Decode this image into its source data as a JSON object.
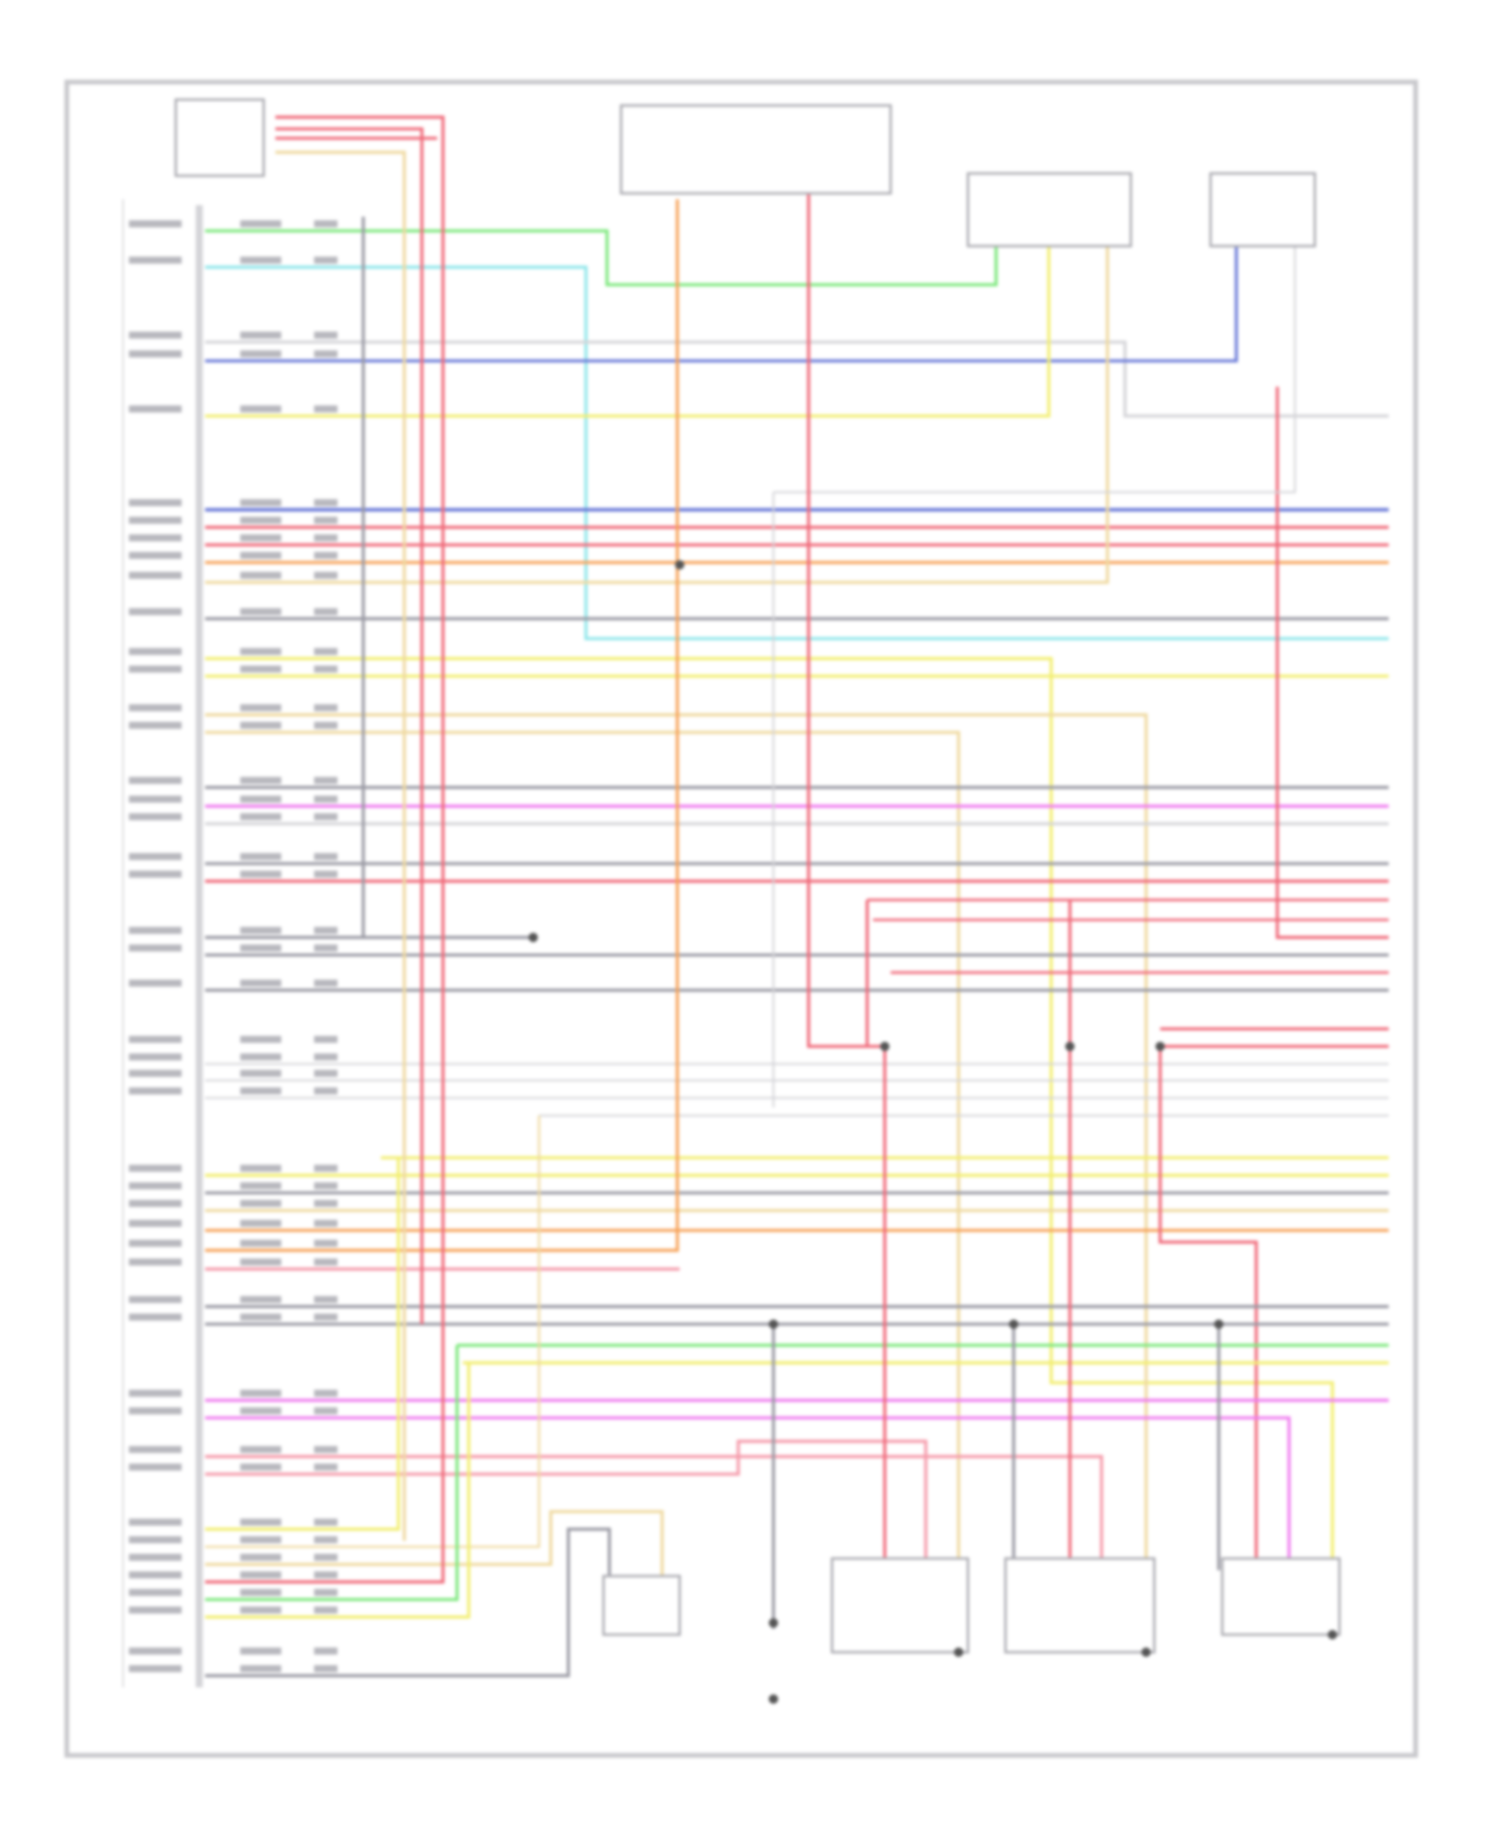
{
  "diagram": {
    "type": "wiring-schematic",
    "text_legible": false,
    "frame_color": "#c8c8cc",
    "wire_colors": {
      "red": "#f06a7a",
      "pink": "#f59aaa",
      "orange": "#f7a35a",
      "yellow": "#f2ee70",
      "tan": "#efd9a0",
      "green": "#7ce87c",
      "cyan": "#8fe6ea",
      "blue": "#6a7ad8",
      "magenta": "#ef7cef",
      "gray": "#9a9aa4",
      "lightgray": "#d4d4d8"
    },
    "components": [
      {
        "id": "module-top-left"
      },
      {
        "id": "relay-block"
      },
      {
        "id": "sensor-top-right-1"
      },
      {
        "id": "sensor-top-right-2"
      },
      {
        "id": "sensor-bottom-1"
      },
      {
        "id": "sensor-bottom-2"
      },
      {
        "id": "sensor-bottom-3"
      },
      {
        "id": "sensor-bottom-4"
      }
    ]
  }
}
